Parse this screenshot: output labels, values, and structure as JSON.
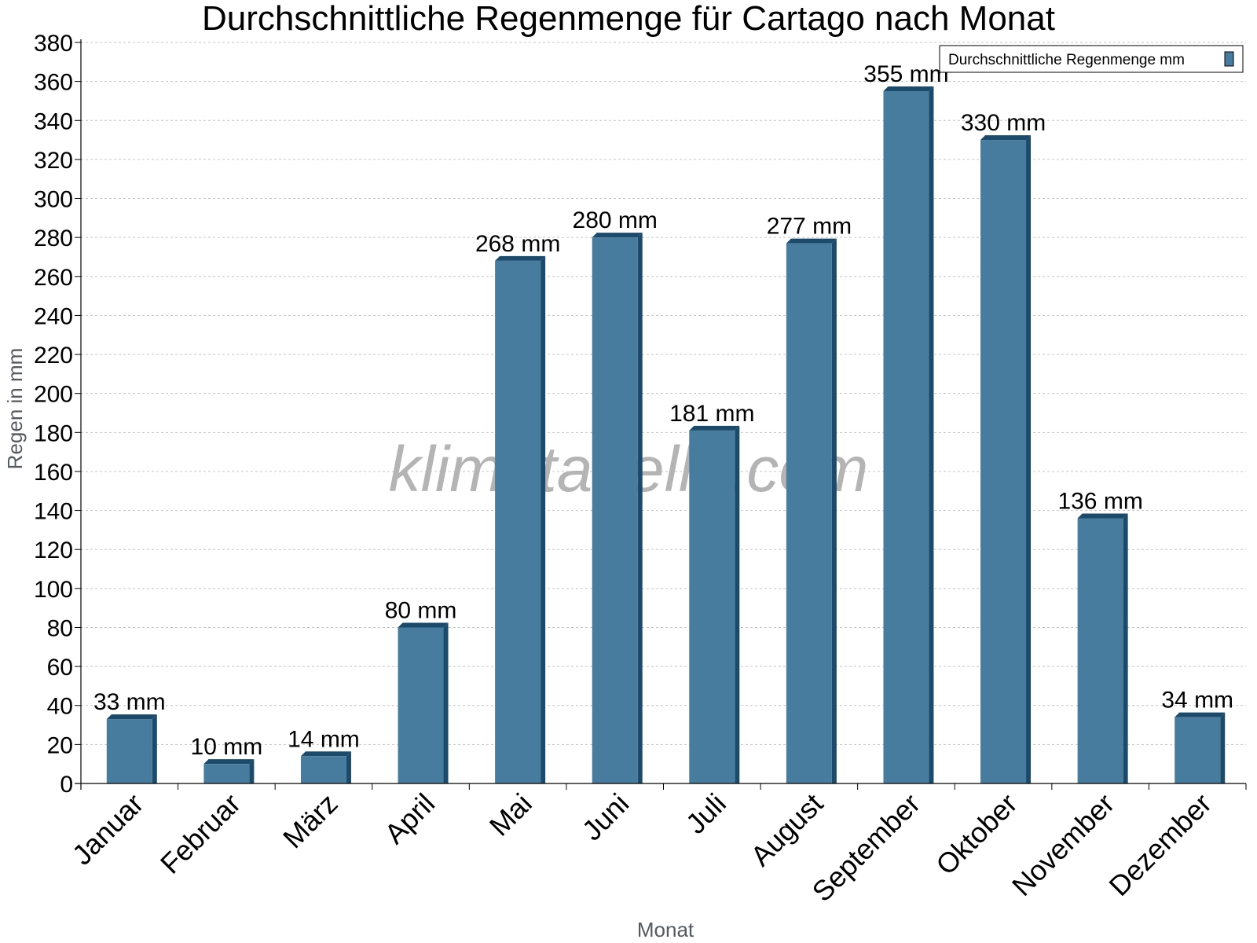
{
  "chart_data": {
    "type": "bar",
    "title": "Durchschnittliche Regenmenge für Cartago nach Monat",
    "xlabel": "Monat",
    "ylabel": "Regen in mm",
    "ylim": [
      0,
      380
    ],
    "ytick_step": 20,
    "grid": true,
    "legend_position": "top-right",
    "categories": [
      "Januar",
      "Februar",
      "März",
      "April",
      "Mai",
      "Juni",
      "Juli",
      "August",
      "September",
      "Oktober",
      "November",
      "Dezember"
    ],
    "series": [
      {
        "name": "Durchschnittliche Regenmenge mm",
        "color": "#477c9e",
        "dark_color": "#1c4a6a",
        "values": [
          33,
          10,
          14,
          80,
          268,
          280,
          181,
          277,
          355,
          330,
          136,
          34
        ],
        "value_suffix": " mm"
      }
    ]
  },
  "watermark": "klimatabelle.com"
}
